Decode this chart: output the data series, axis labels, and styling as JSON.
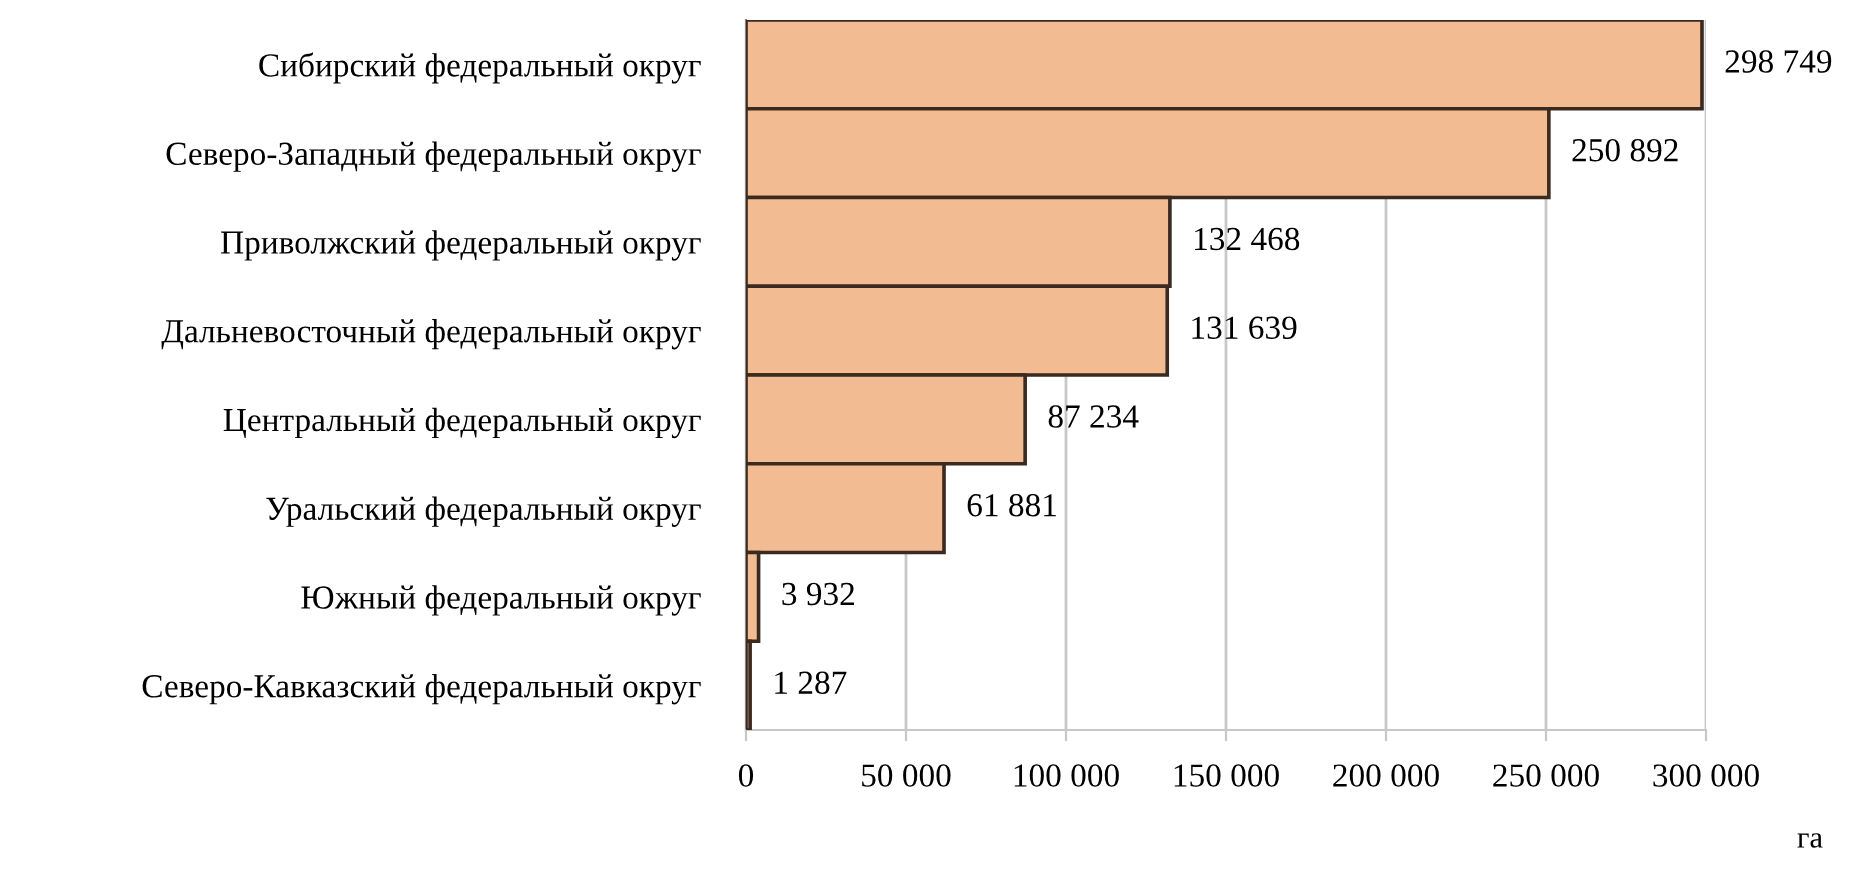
{
  "chart_data": {
    "type": "bar",
    "orientation": "horizontal",
    "xlabel": "га",
    "categories": [
      "Сибирский федеральный округ",
      "Северо-Западный федеральный округ",
      "Приволжский федеральный округ",
      "Дальневосточный федеральный округ",
      "Центральный федеральный округ",
      "Уральский федеральный округ",
      "Южный федеральный округ",
      "Северо-Кавказский федеральный округ"
    ],
    "values": [
      298749,
      250892,
      132468,
      131639,
      87234,
      61881,
      3932,
      1287
    ],
    "value_labels": [
      "298 749",
      "250 892",
      "132 468",
      "131 639",
      "87 234",
      "61 881",
      "3 932",
      "1 287"
    ],
    "color": "#f2bb92",
    "xlim": [
      0,
      300000
    ],
    "xticks": [
      0,
      {
        "value": 50000,
        "label": "50 000"
      },
      {
        "value": 100000,
        "label": "100 000"
      },
      {
        "value": 150000,
        "label": "150 000"
      },
      {
        "value": 200000,
        "label": "200 000"
      },
      {
        "value": 250000,
        "label": "250 000"
      },
      {
        "value": 300000,
        "label": "300 000"
      }
    ],
    "grid": "x",
    "legend": false
  }
}
